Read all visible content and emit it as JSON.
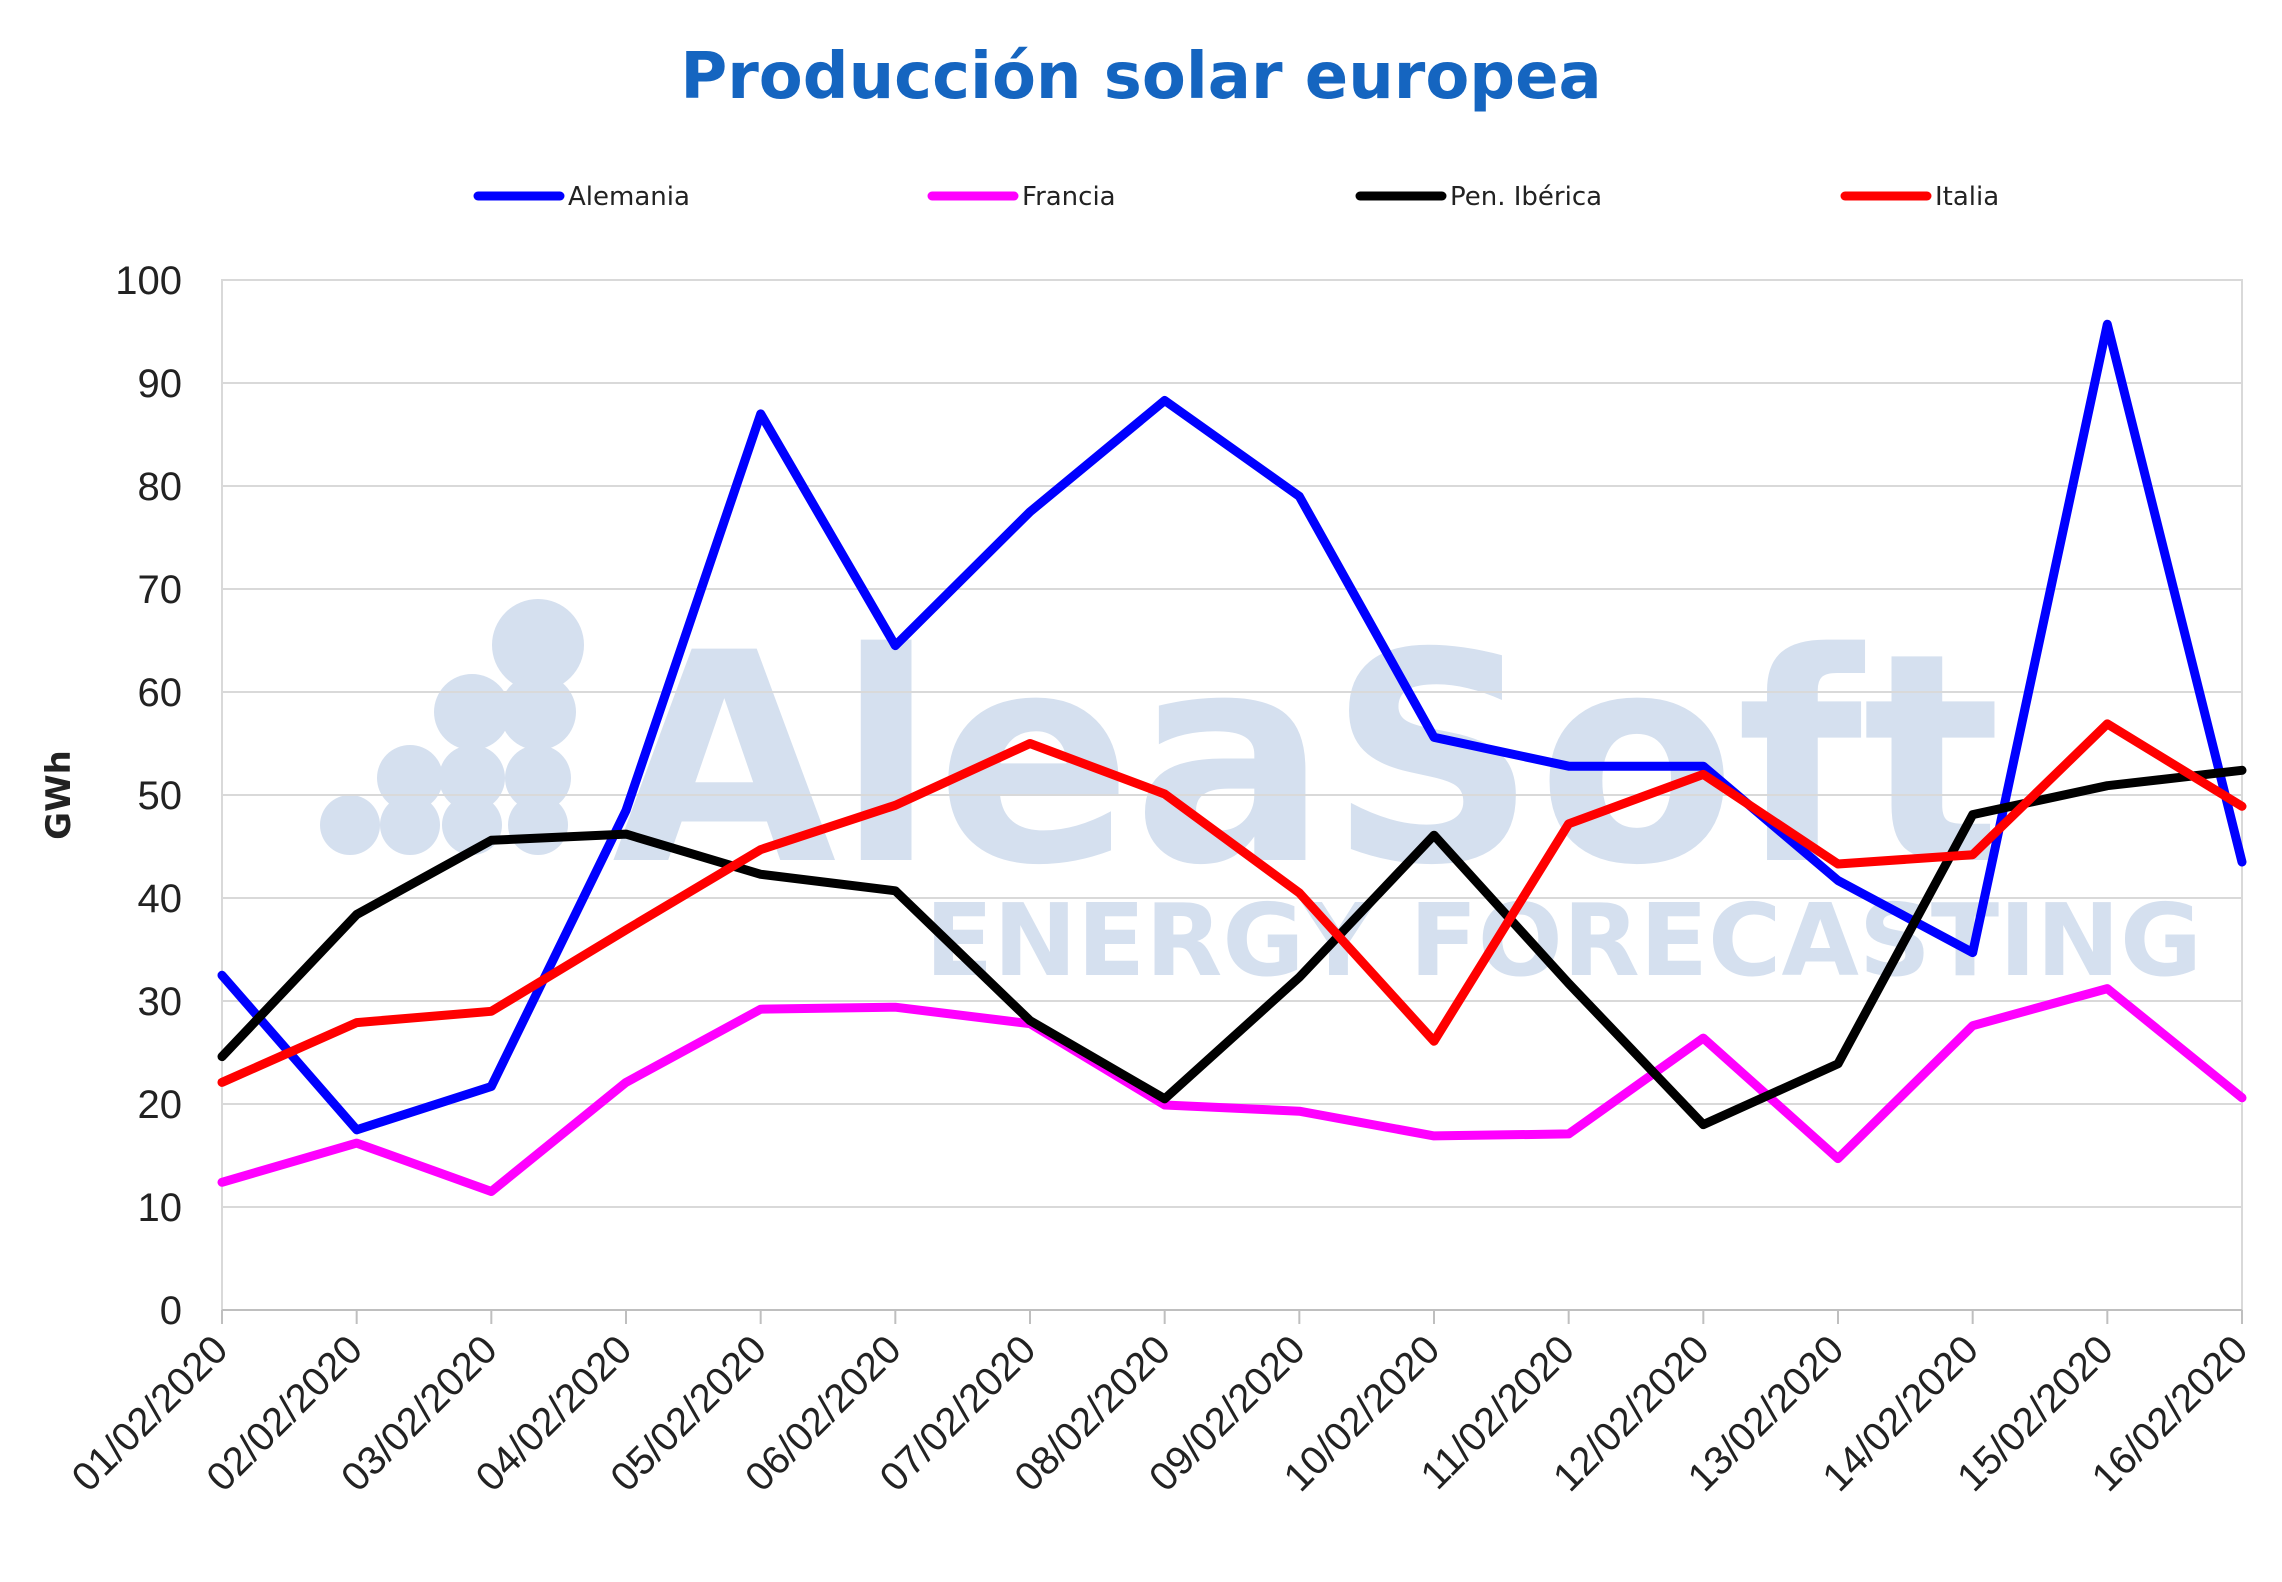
{
  "chart_data": {
    "type": "line",
    "title": "Producción solar europea",
    "ylabel": "GWh",
    "xlabel": "",
    "ylim": [
      0,
      100
    ],
    "yticks": [
      0,
      10,
      20,
      30,
      40,
      50,
      60,
      70,
      80,
      90,
      100
    ],
    "grid": "horizontal",
    "legend_position": "top",
    "categories": [
      "01/02/2020",
      "02/02/2020",
      "03/02/2020",
      "04/02/2020",
      "05/02/2020",
      "06/02/2020",
      "07/02/2020",
      "08/02/2020",
      "09/02/2020",
      "10/02/2020",
      "11/02/2020",
      "12/02/2020",
      "13/02/2020",
      "14/02/2020",
      "15/02/2020",
      "16/02/2020"
    ],
    "series": [
      {
        "name": "Alemania",
        "color": "#0000ff",
        "values": [
          32.5,
          17.5,
          21.7,
          48.5,
          87.0,
          64.5,
          77.5,
          88.3,
          79.0,
          55.6,
          52.8,
          52.8,
          41.7,
          34.7,
          95.7,
          43.5
        ]
      },
      {
        "name": "Francia",
        "color": "#ff00ff",
        "values": [
          12.4,
          16.2,
          11.5,
          22.1,
          29.2,
          29.4,
          27.8,
          19.9,
          19.3,
          16.9,
          17.1,
          26.4,
          14.7,
          27.6,
          31.2,
          20.6
        ]
      },
      {
        "name": "Pen. Ibérica",
        "color": "#000000",
        "values": [
          24.6,
          38.4,
          45.6,
          46.2,
          42.3,
          40.7,
          28.1,
          20.5,
          32.3,
          46.1,
          31.7,
          18.0,
          23.9,
          48.1,
          50.9,
          52.4
        ]
      },
      {
        "name": "Italia",
        "color": "#ff0000",
        "values": [
          22.1,
          27.9,
          29.0,
          36.9,
          44.7,
          49.0,
          55.0,
          50.1,
          40.5,
          26.1,
          47.2,
          52.0,
          43.3,
          44.2,
          56.9,
          48.9
        ]
      }
    ]
  },
  "watermark": {
    "brand": "AleaSoft",
    "tagline": "ENERGY FORECASTING"
  }
}
